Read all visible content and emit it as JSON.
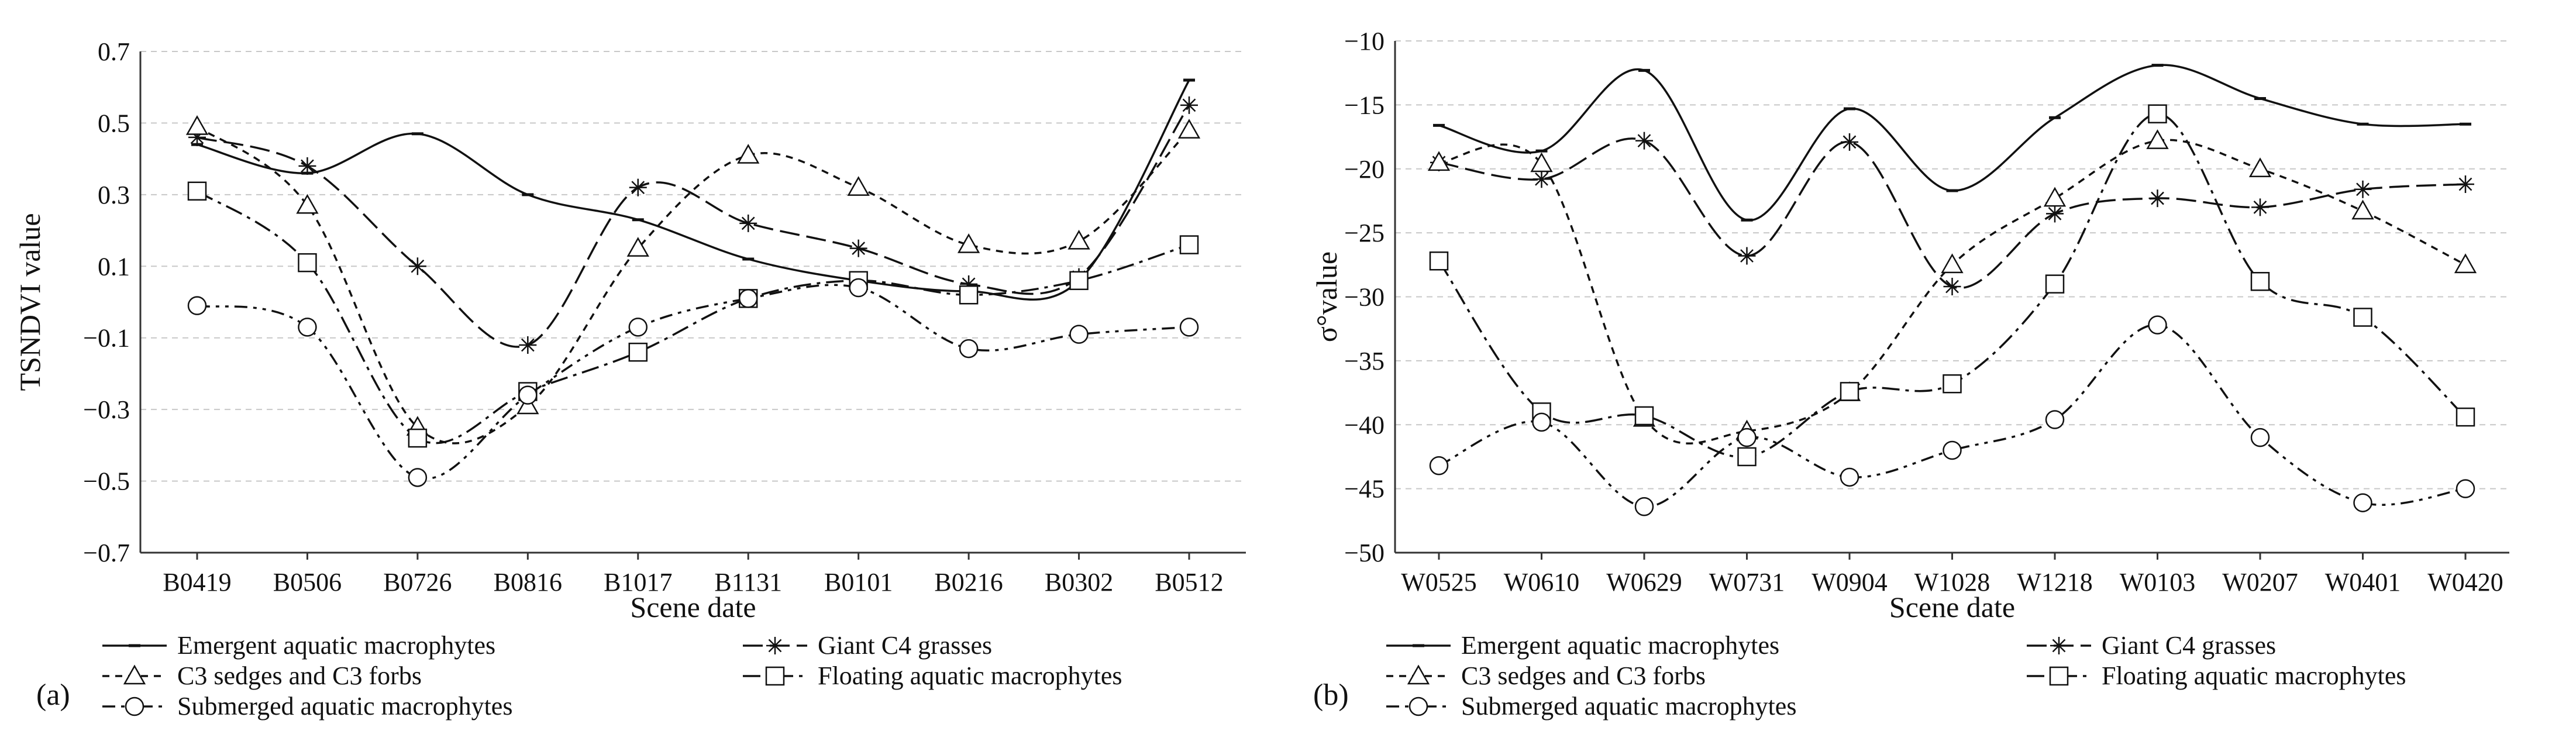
{
  "chart_data": [
    {
      "panel": "(a)",
      "type": "line",
      "xlabel": "Scene date",
      "ylabel": "TSNDVI value",
      "ylim": [
        -0.7,
        0.7
      ],
      "yticks": [
        -0.7,
        -0.5,
        -0.3,
        -0.1,
        0.1,
        0.3,
        0.5,
        0.7
      ],
      "ytick_labels": [
        "−0.7",
        "−0.5",
        "−0.3",
        "−0.1",
        "0.1",
        "0.3",
        "0.5",
        "0.7"
      ],
      "grid": true,
      "categories": [
        "B0419",
        "B0506",
        "B0726",
        "B0816",
        "B1017",
        "B1131",
        "B0101",
        "B0216",
        "B0302",
        "B0512"
      ],
      "series": [
        {
          "name": "Emergent aquatic macrophytes",
          "marker": "none",
          "values": [
            0.44,
            0.36,
            0.47,
            0.3,
            0.23,
            0.12,
            0.06,
            0.03,
            0.06,
            0.62
          ]
        },
        {
          "name": "Giant C4 grasses",
          "marker": "star",
          "values": [
            0.46,
            0.38,
            0.1,
            -0.12,
            0.32,
            0.22,
            0.15,
            0.05,
            0.07,
            0.55
          ]
        },
        {
          "name": "C3 sedges and C3 forbs",
          "marker": "triangle",
          "values": [
            0.49,
            0.27,
            -0.35,
            -0.29,
            0.15,
            0.41,
            0.32,
            0.16,
            0.17,
            0.48
          ]
        },
        {
          "name": "Floating aquatic macrophytes",
          "marker": "square",
          "values": [
            0.31,
            0.11,
            -0.38,
            -0.25,
            -0.14,
            0.01,
            0.06,
            0.02,
            0.06,
            0.16
          ]
        },
        {
          "name": "Submerged  aquatic macrophytes",
          "marker": "circle",
          "values": [
            -0.01,
            -0.07,
            -0.49,
            -0.26,
            -0.07,
            0.01,
            0.04,
            -0.13,
            -0.09,
            -0.07
          ]
        }
      ]
    },
    {
      "panel": "(b)",
      "type": "line",
      "xlabel": "Scene date",
      "ylabel": "σ°value",
      "ylim": [
        -50,
        -10
      ],
      "yticks": [
        -50,
        -45,
        -40,
        -35,
        -30,
        -25,
        -20,
        -15,
        -10
      ],
      "ytick_labels": [
        "−50",
        "−45",
        "−40",
        "−35",
        "−30",
        "−25",
        "−20",
        "−15",
        "−10"
      ],
      "grid": true,
      "categories": [
        "W0525",
        "W0610",
        "W0629",
        "W0731",
        "W0904",
        "W1028",
        "W1218",
        "W0103",
        "W0207",
        "W0401",
        "W0420"
      ],
      "series": [
        {
          "name": "Emergent aquatic macrophytes",
          "marker": "none",
          "values": [
            -16.6,
            -18.6,
            -12.3,
            -24.0,
            -15.3,
            -21.7,
            -16.0,
            -11.9,
            -14.5,
            -16.5,
            -16.5
          ]
        },
        {
          "name": "Giant C4 grasses",
          "marker": "star",
          "values": [
            -19.5,
            -20.8,
            -17.8,
            -26.8,
            -17.9,
            -29.2,
            -23.5,
            -22.3,
            -23.0,
            -21.6,
            -21.2
          ]
        },
        {
          "name": "C3 sedges and C3 forbs",
          "marker": "triangle",
          "values": [
            -19.5,
            -19.6,
            -39.5,
            -40.5,
            -37.5,
            -27.5,
            -22.3,
            -17.8,
            -20.0,
            -23.3,
            -27.5
          ]
        },
        {
          "name": "Floating aquatic macrophytes",
          "marker": "square",
          "values": [
            -27.2,
            -39.0,
            -39.3,
            -42.5,
            -37.4,
            -36.8,
            -29.0,
            -15.7,
            -28.8,
            -31.6,
            -39.4
          ]
        },
        {
          "name": "Submerged  aquatic macrophytes",
          "marker": "circle",
          "values": [
            -43.2,
            -39.8,
            -46.4,
            -41.0,
            -44.1,
            -42.0,
            -39.6,
            -32.2,
            -41.0,
            -46.1,
            -45.0
          ]
        }
      ]
    }
  ]
}
